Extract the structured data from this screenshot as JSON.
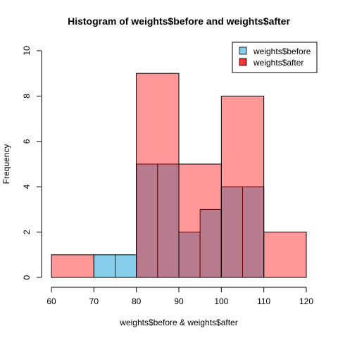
{
  "chart_data": {
    "type": "bar",
    "title": "Histogram of weights$before and weights$after",
    "xlabel": "weights$before & weights$after",
    "ylabel": "Frequency",
    "xlim": [
      60,
      120
    ],
    "ylim": [
      0,
      10
    ],
    "x_ticks": [
      "60",
      "70",
      "80",
      "90",
      "100",
      "110",
      "120"
    ],
    "y_ticks": [
      "0",
      "2",
      "4",
      "6",
      "8",
      "10"
    ],
    "legend_position": "top-right",
    "series": [
      {
        "name": "weights$before",
        "color": "#87CEEB",
        "bins": [
          {
            "start": 70,
            "end": 75,
            "count": 1
          },
          {
            "start": 75,
            "end": 80,
            "count": 1
          },
          {
            "start": 80,
            "end": 85,
            "count": 5
          },
          {
            "start": 85,
            "end": 90,
            "count": 5
          },
          {
            "start": 90,
            "end": 95,
            "count": 2
          },
          {
            "start": 95,
            "end": 100,
            "count": 3
          },
          {
            "start": 100,
            "end": 105,
            "count": 4
          },
          {
            "start": 105,
            "end": 110,
            "count": 4
          }
        ]
      },
      {
        "name": "weights$after",
        "color": "#FF0000",
        "bins": [
          {
            "start": 60,
            "end": 70,
            "count": 1
          },
          {
            "start": 80,
            "end": 90,
            "count": 9
          },
          {
            "start": 90,
            "end": 100,
            "count": 5
          },
          {
            "start": 100,
            "end": 110,
            "count": 8
          },
          {
            "start": 110,
            "end": 120,
            "count": 2
          }
        ]
      }
    ]
  }
}
